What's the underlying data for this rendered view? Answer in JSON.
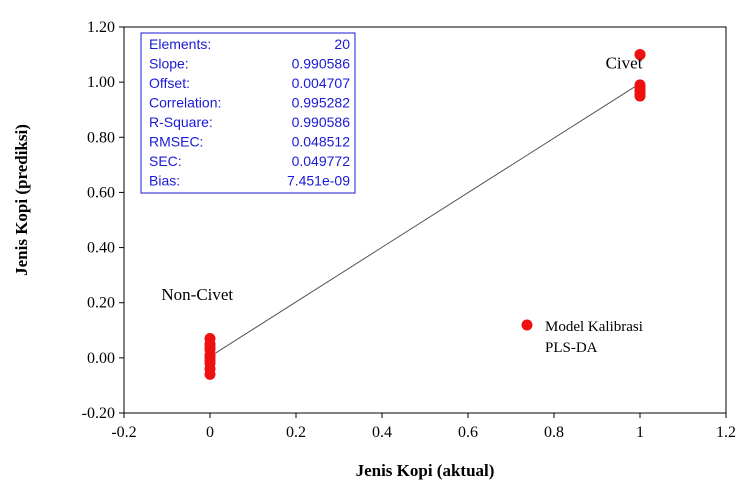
{
  "chart_data": {
    "type": "scatter",
    "title": "",
    "xlabel": "Jenis Kopi (aktual)",
    "ylabel": "Jenis Kopi (prediksi)",
    "xlim": [
      -0.2,
      1.2
    ],
    "ylim": [
      -0.2,
      1.2
    ],
    "x_ticks": [
      "-0.2",
      "0",
      "0.2",
      "0.4",
      "0.6",
      "0.8",
      "1",
      "1.2"
    ],
    "y_ticks": [
      "-0.20",
      "0.00",
      "0.20",
      "0.40",
      "0.60",
      "0.80",
      "1.00",
      "1.20"
    ],
    "grid": false,
    "point_color": "#ee1111",
    "line_color": "#555555",
    "series": [
      {
        "name": "Model Kalibrasi PLS-DA",
        "x": [
          0,
          0,
          0,
          0,
          0,
          0,
          0,
          0,
          0,
          0,
          1,
          1,
          1,
          1,
          1,
          1,
          1,
          1,
          1,
          1
        ],
        "y": [
          0.07,
          0.05,
          0.04,
          0.03,
          0.01,
          0.0,
          -0.01,
          -0.02,
          -0.04,
          -0.06,
          1.1,
          1.1,
          0.99,
          0.98,
          0.97,
          0.97,
          0.96,
          0.96,
          0.95,
          0.95
        ]
      }
    ],
    "regression_line": {
      "slope": 0.990586,
      "offset": 0.004707,
      "x_range": [
        0,
        1
      ]
    },
    "annotations": [
      {
        "text": "Civet",
        "x": 0.92,
        "y": 1.05
      },
      {
        "text": "Non-Civet",
        "x": -0.02,
        "y": 0.21
      }
    ],
    "legend": {
      "position": "bottom-right",
      "line1": "Model Kalibrasi",
      "line2": "PLS-DA"
    },
    "stats": [
      {
        "label": "Elements:",
        "value": "20"
      },
      {
        "label": "Slope:",
        "value": "0.990586"
      },
      {
        "label": "Offset:",
        "value": "0.004707"
      },
      {
        "label": "Correlation:",
        "value": "0.995282"
      },
      {
        "label": "R-Square:",
        "value": "0.990586"
      },
      {
        "label": "RMSEC:",
        "value": "0.048512"
      },
      {
        "label": "SEC:",
        "value": "0.049772"
      },
      {
        "label": "Bias:",
        "value": "7.451e-09"
      }
    ],
    "stats_color": "#1a1ad6"
  }
}
